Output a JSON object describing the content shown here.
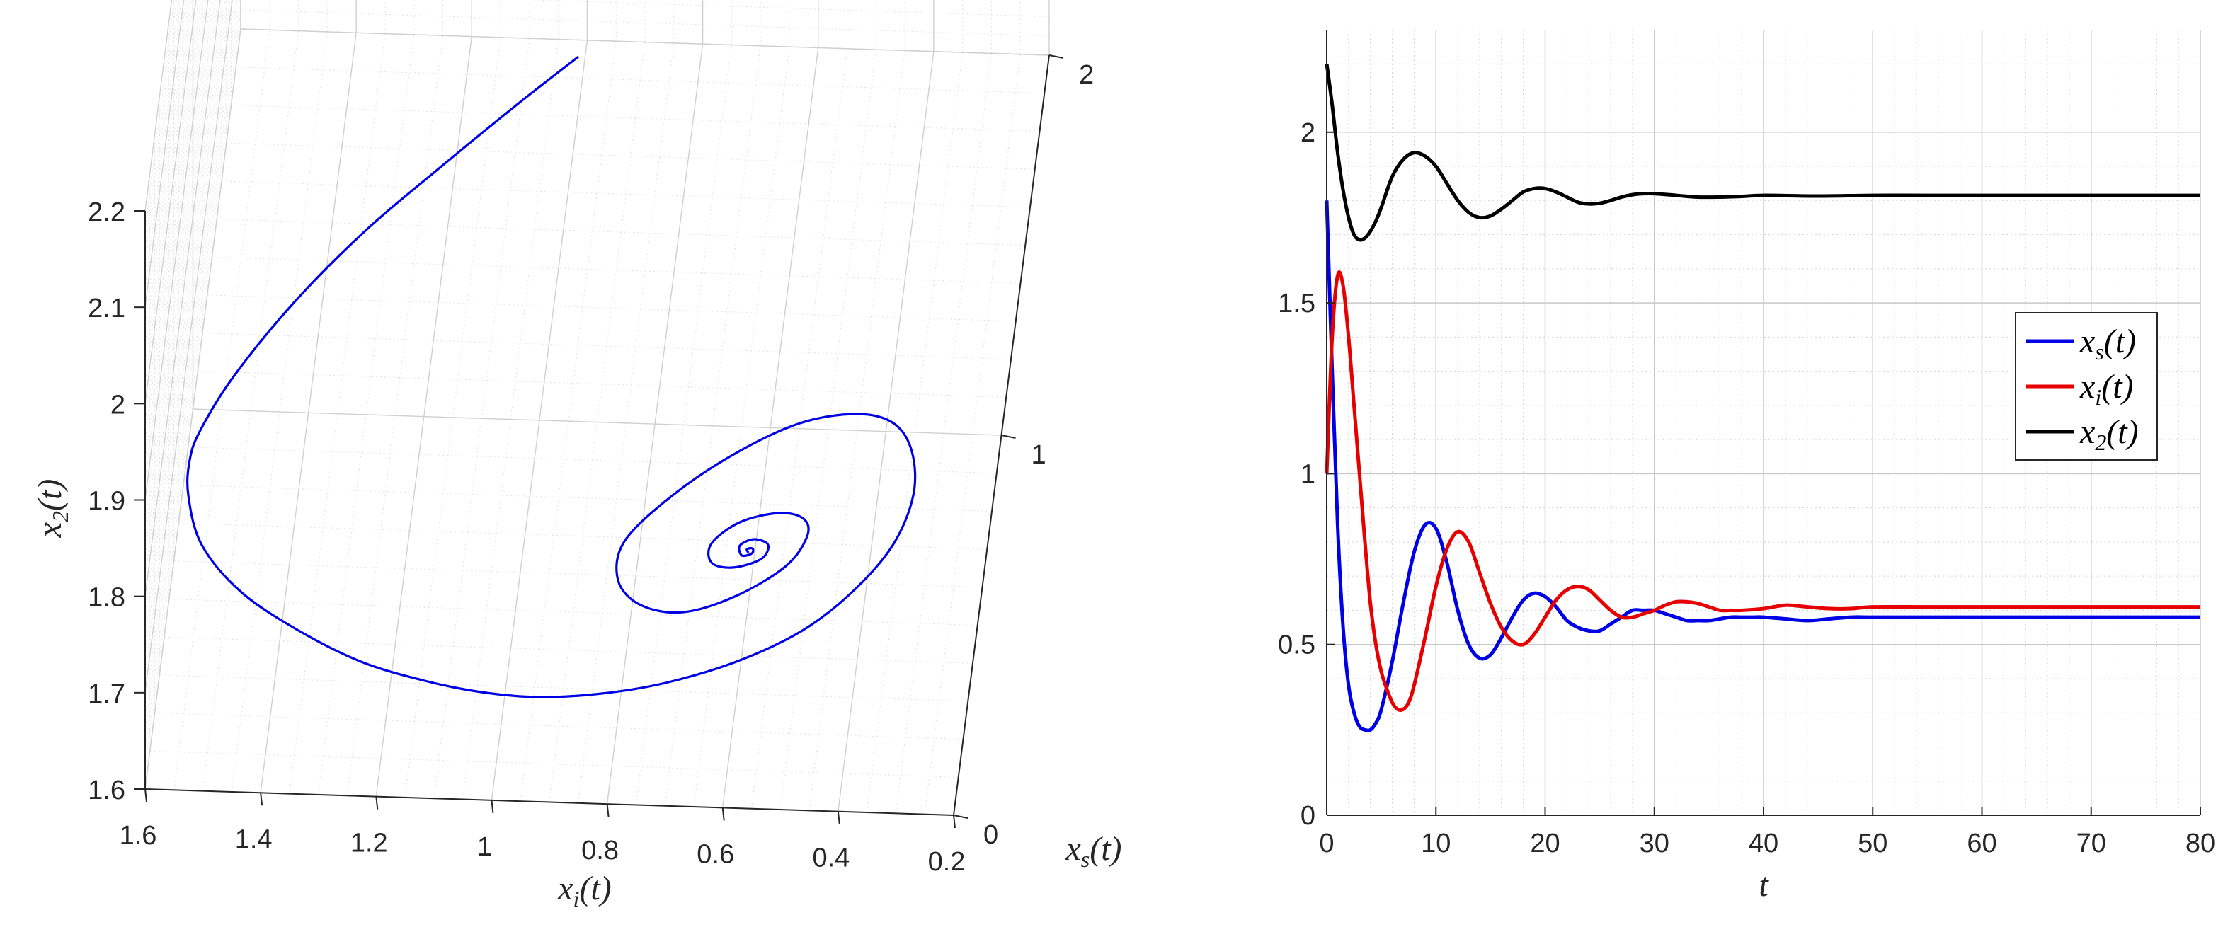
{
  "chart_data": [
    {
      "type": "line3d",
      "title": "",
      "xlabel": "x_i(t)",
      "ylabel": "x_s(t)",
      "zlabel": "x_2(t)",
      "x_ticks": [
        "1.6",
        "1.4",
        "1.2",
        "1",
        "0.8",
        "0.6",
        "0.4",
        "0.2"
      ],
      "y_ticks": [
        "0",
        "1",
        "2"
      ],
      "z_ticks": [
        "1.6",
        "1.7",
        "1.8",
        "1.9",
        "2",
        "2.1",
        "2.2"
      ],
      "xlim": [
        0.2,
        1.6
      ],
      "ylim": [
        0,
        2
      ],
      "zlim": [
        1.6,
        2.2
      ],
      "grid": true,
      "series": [
        {
          "color": "#0000e6",
          "description": "trajectory spiralling into equilibrium",
          "equilibrium": {
            "x_i": 0.6,
            "x_s": 0.57,
            "x_2": 1.81
          }
        }
      ]
    },
    {
      "type": "line",
      "title": "",
      "xlabel": "t",
      "ylabel": "",
      "xlim": [
        0,
        80
      ],
      "ylim": [
        0,
        2.3
      ],
      "x_ticks": [
        "0",
        "10",
        "20",
        "30",
        "40",
        "50",
        "60",
        "70",
        "80"
      ],
      "y_ticks": [
        "0",
        "0.5",
        "1",
        "1.5",
        "2"
      ],
      "grid": true,
      "legend_position": "right",
      "series": [
        {
          "name": "x_s(t)",
          "color": "#0000e6",
          "x": [
            0,
            0.5,
            1,
            1.5,
            2,
            2.5,
            3,
            3.5,
            4,
            4.5,
            5,
            6,
            7,
            8,
            9,
            10,
            11,
            12,
            13,
            14,
            15,
            16,
            17,
            18,
            19,
            20,
            21,
            22,
            23,
            24,
            25,
            26,
            27,
            28,
            29,
            30,
            31,
            32,
            33,
            34,
            35,
            36,
            37,
            38,
            39,
            40,
            42,
            44,
            46,
            48,
            50,
            55,
            60,
            65,
            70,
            75,
            80
          ],
          "values": [
            1.8,
            1.3,
            0.85,
            0.55,
            0.38,
            0.3,
            0.26,
            0.25,
            0.25,
            0.27,
            0.31,
            0.45,
            0.62,
            0.77,
            0.85,
            0.84,
            0.74,
            0.6,
            0.5,
            0.46,
            0.47,
            0.52,
            0.58,
            0.63,
            0.65,
            0.64,
            0.61,
            0.57,
            0.55,
            0.54,
            0.54,
            0.56,
            0.58,
            0.6,
            0.6,
            0.6,
            0.59,
            0.58,
            0.57,
            0.57,
            0.57,
            0.575,
            0.58,
            0.58,
            0.58,
            0.58,
            0.575,
            0.57,
            0.575,
            0.58,
            0.58,
            0.58,
            0.58,
            0.58,
            0.58,
            0.58,
            0.58
          ]
        },
        {
          "name": "x_i(t)",
          "color": "#e60000",
          "x": [
            0,
            0.5,
            1,
            1.5,
            2,
            2.5,
            3,
            3.5,
            4,
            4.5,
            5,
            5.5,
            6,
            6.5,
            7,
            7.5,
            8,
            9,
            10,
            11,
            12,
            13,
            14,
            15,
            16,
            17,
            18,
            19,
            20,
            21,
            22,
            23,
            24,
            25,
            26,
            27,
            28,
            29,
            30,
            31,
            32,
            33,
            34,
            35,
            36,
            37,
            38,
            40,
            42,
            44,
            46,
            48,
            50,
            55,
            60,
            65,
            70,
            75,
            80
          ],
          "values": [
            1.0,
            1.4,
            1.58,
            1.55,
            1.4,
            1.2,
            1.0,
            0.8,
            0.62,
            0.5,
            0.42,
            0.37,
            0.33,
            0.31,
            0.31,
            0.33,
            0.38,
            0.52,
            0.67,
            0.78,
            0.83,
            0.8,
            0.71,
            0.62,
            0.55,
            0.51,
            0.5,
            0.53,
            0.58,
            0.63,
            0.66,
            0.67,
            0.66,
            0.63,
            0.6,
            0.58,
            0.58,
            0.59,
            0.6,
            0.615,
            0.625,
            0.625,
            0.62,
            0.61,
            0.6,
            0.6,
            0.6,
            0.605,
            0.615,
            0.61,
            0.605,
            0.605,
            0.61,
            0.61,
            0.61,
            0.61,
            0.61,
            0.61,
            0.61
          ]
        },
        {
          "name": "x_2(t)",
          "color": "#000000",
          "x": [
            0,
            0.5,
            1,
            1.5,
            2,
            2.5,
            3,
            3.5,
            4,
            4.5,
            5,
            6,
            7,
            8,
            9,
            10,
            11,
            12,
            13,
            14,
            15,
            16,
            17,
            18,
            19,
            20,
            21,
            22,
            23,
            24,
            25,
            26,
            27,
            28,
            29,
            30,
            32,
            34,
            36,
            38,
            40,
            45,
            50,
            55,
            60,
            65,
            70,
            75,
            80
          ],
          "values": [
            2.2,
            2.08,
            1.94,
            1.83,
            1.75,
            1.7,
            1.685,
            1.69,
            1.71,
            1.74,
            1.78,
            1.87,
            1.92,
            1.94,
            1.93,
            1.9,
            1.85,
            1.8,
            1.765,
            1.75,
            1.755,
            1.775,
            1.8,
            1.825,
            1.835,
            1.835,
            1.825,
            1.81,
            1.795,
            1.79,
            1.792,
            1.8,
            1.81,
            1.817,
            1.82,
            1.82,
            1.815,
            1.81,
            1.81,
            1.812,
            1.815,
            1.813,
            1.815,
            1.815,
            1.815,
            1.815,
            1.815,
            1.815,
            1.815
          ]
        }
      ]
    }
  ]
}
